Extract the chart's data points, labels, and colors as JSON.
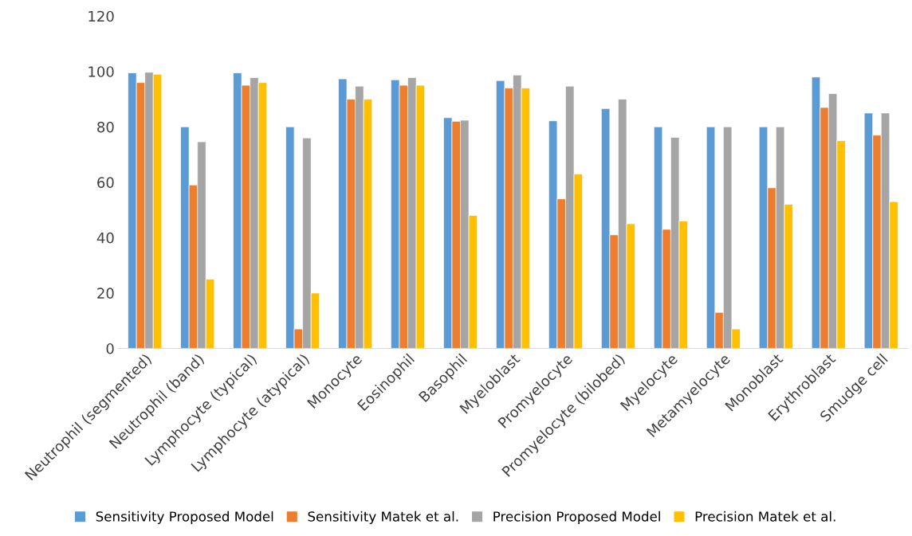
{
  "chart_data": {
    "type": "bar",
    "categories": [
      "Neutrophil (segmented)",
      "Neutrophil (band)",
      "Lymphocyte (typical)",
      "Lymphocyte (atypical)",
      "Monocyte",
      "Eosinophil",
      "Basophil",
      "Myeloblast",
      "Promyelocyte",
      "Promyelocyte (bilobed)",
      "Myelocyte",
      "Metamyelocyte",
      "Monoblast",
      "Erythroblast",
      "Smudge cell"
    ],
    "series": [
      {
        "name": "Sensitivity Proposed Model",
        "color": "#5b9bd5",
        "values": [
          99.5,
          80,
          99.5,
          80,
          97.3,
          97,
          83.3,
          96.7,
          82.2,
          86.6,
          80,
          80,
          80,
          98,
          85
        ]
      },
      {
        "name": "Sensitivity Matek et al.",
        "color": "#ed7d31",
        "values": [
          96,
          59,
          95,
          7,
          90,
          95,
          82,
          94,
          54,
          41,
          43,
          13,
          58,
          87,
          77
        ]
      },
      {
        "name": "Precision Proposed Model",
        "color": "#a5a5a5",
        "values": [
          99.7,
          74.6,
          97.8,
          76,
          94.7,
          97.8,
          82.4,
          98.7,
          94.7,
          90,
          76.2,
          80,
          80,
          92,
          85
        ]
      },
      {
        "name": "Precision Matek et al.",
        "color": "#ffc000",
        "values": [
          99,
          25,
          96,
          20,
          90,
          95,
          48,
          94,
          63,
          45,
          46,
          7,
          52,
          75,
          53
        ]
      }
    ],
    "ylim": [
      0,
      120
    ],
    "yticks": [
      0,
      20,
      40,
      60,
      80,
      100,
      120
    ],
    "grid": false,
    "legend": "bottom"
  }
}
